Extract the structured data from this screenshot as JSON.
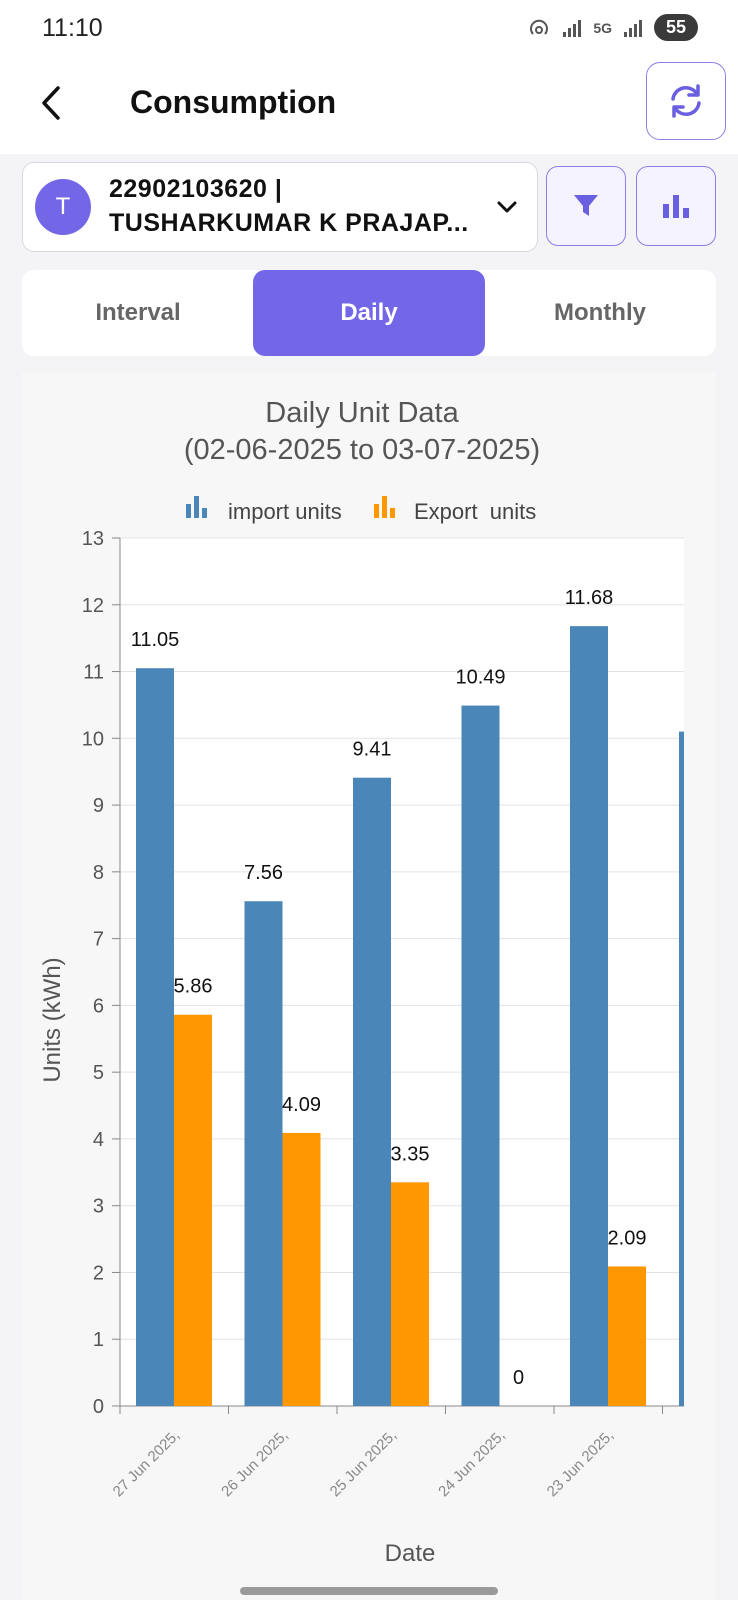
{
  "status_bar": {
    "time": "11:10",
    "network": "5G",
    "battery": "55"
  },
  "header": {
    "title": "Consumption"
  },
  "account": {
    "avatar_letter": "T",
    "line1": "22902103620 |",
    "line2": "TUSHARKUMAR K PRAJAP..."
  },
  "tabs": [
    {
      "label": "Interval",
      "active": false
    },
    {
      "label": "Daily",
      "active": true
    },
    {
      "label": "Monthly",
      "active": false
    }
  ],
  "colors": {
    "accent": "#7367e8",
    "import": "#4a86b8",
    "export": "#ff9800"
  },
  "chart_data": {
    "type": "bar",
    "title_line1": "Daily Unit Data",
    "title_line2": "(02-06-2025 to 03-07-2025)",
    "xlabel": "Date",
    "ylabel": "Units (kWh)",
    "ylim": [
      0,
      13
    ],
    "yticks": [
      0,
      1,
      2,
      3,
      4,
      5,
      6,
      7,
      8,
      9,
      10,
      11,
      12,
      13
    ],
    "grid": true,
    "legend_position": "top-center",
    "categories": [
      "27 Jun 2025,",
      "26 Jun 2025,",
      "25 Jun 2025,",
      "24 Jun 2025,",
      "23 Jun 2025,"
    ],
    "series": [
      {
        "name": "import units",
        "color": "#4a86b8",
        "values": [
          11.05,
          7.56,
          9.41,
          10.49,
          11.68
        ]
      },
      {
        "name": "Export  units",
        "color": "#ff9800",
        "values": [
          5.86,
          4.09,
          3.35,
          0,
          2.09
        ]
      }
    ],
    "partial_next_import_value": 10.1
  }
}
